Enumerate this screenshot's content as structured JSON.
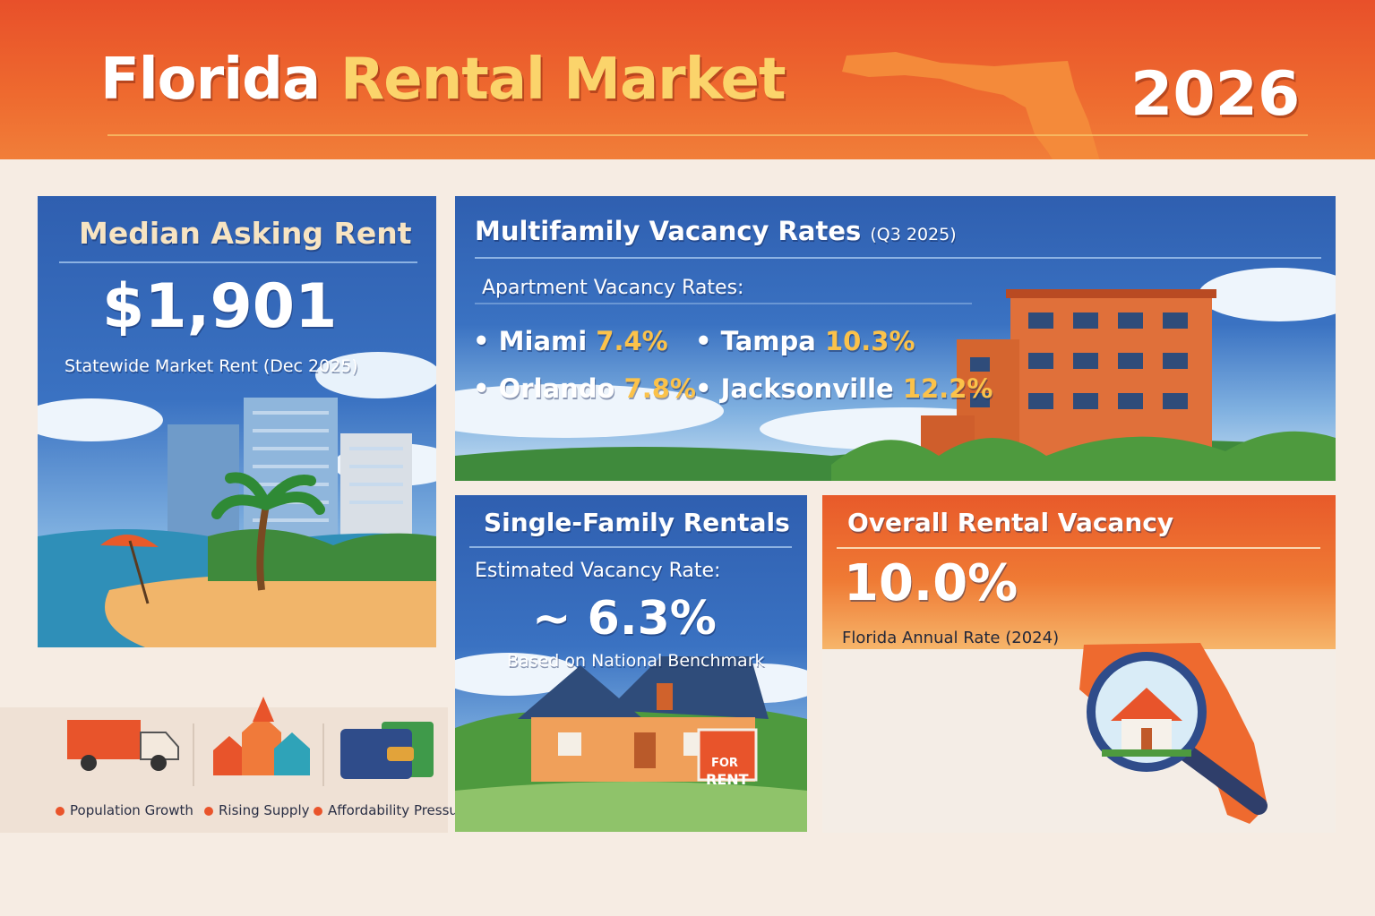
{
  "header": {
    "title_part1": "Florida",
    "title_part2": "Rental Market",
    "year": "2026"
  },
  "median_rent": {
    "heading": "Median Asking Rent",
    "value": "$1,901",
    "caption": "Statewide Market Rent (Dec 2025)"
  },
  "multifamily": {
    "heading": "Multifamily Vacancy Rates",
    "period": "(Q3 2025)",
    "subheading": "Apartment Vacancy Rates:",
    "cities": [
      {
        "name": "Miami",
        "rate": "7.4%"
      },
      {
        "name": "Tampa",
        "rate": "10.3%"
      },
      {
        "name": "Orlando",
        "rate": "7.8%"
      },
      {
        "name": "Jacksonville",
        "rate": "12.2%"
      }
    ]
  },
  "single_family": {
    "heading": "Single-Family Rentals",
    "subheading": "Estimated Vacancy Rate:",
    "value": "~ 6.3%",
    "caption": "Based on National Benchmark",
    "sign_line1": "FOR",
    "sign_line2": "RENT"
  },
  "overall": {
    "heading": "Overall Rental Vacancy",
    "value": "10.0%",
    "caption": "Florida Annual Rate (2024)"
  },
  "factors": [
    {
      "label": "Population Growth",
      "icon": "moving-truck-icon"
    },
    {
      "label": "Rising Supply",
      "icon": "rising-arrows-icon"
    },
    {
      "label": "Affordability Pressures",
      "icon": "wallet-icon"
    }
  ],
  "colors": {
    "brand_orange": "#e8502a",
    "accent_yellow": "#fbc24a",
    "panel_blue": "#2f5fb0"
  }
}
